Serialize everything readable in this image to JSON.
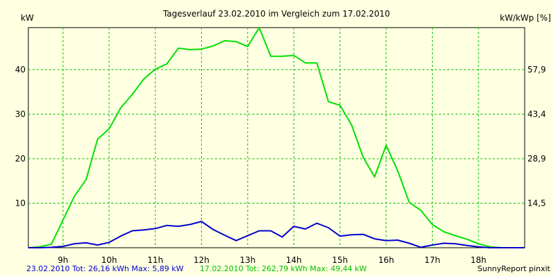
{
  "chart_data": {
    "type": "line",
    "title": "Tagesverlauf 23.02.2010 im Vergleich zum 17.02.2010",
    "ylabel_left": "kW",
    "ylabel_right": "kW/kWp [%]",
    "x_ticks": [
      "9h",
      "10h",
      "11h",
      "12h",
      "13h",
      "14h",
      "15h",
      "16h",
      "17h",
      "18h"
    ],
    "y_ticks_left": [
      "10",
      "20",
      "30",
      "40"
    ],
    "y_ticks_right": [
      "14,5",
      "28,9",
      "43,4",
      "57,9"
    ],
    "ylim": [
      0,
      49.44
    ],
    "xlim": [
      8.25,
      19.0
    ],
    "grid": true,
    "series": [
      {
        "name": "17.02.2010",
        "color": "#00e000",
        "x": [
          8.25,
          8.5,
          8.75,
          9.0,
          9.25,
          9.5,
          9.75,
          10.0,
          10.25,
          10.5,
          10.75,
          11.0,
          11.25,
          11.5,
          11.75,
          12.0,
          12.25,
          12.5,
          12.75,
          13.0,
          13.25,
          13.5,
          13.75,
          14.0,
          14.25,
          14.5,
          14.75,
          15.0,
          15.25,
          15.5,
          15.75,
          16.0,
          16.25,
          16.5,
          16.75,
          17.0,
          17.25,
          17.5,
          17.75,
          18.0,
          18.25,
          18.5,
          18.75,
          19.0
        ],
        "values": [
          0.0,
          0.2,
          0.8,
          6.2,
          11.6,
          15.3,
          24.4,
          26.7,
          31.4,
          34.4,
          37.9,
          40.1,
          41.3,
          44.8,
          44.5,
          44.6,
          45.3,
          46.5,
          46.3,
          45.2,
          49.44,
          43.0,
          43.0,
          43.2,
          41.5,
          41.5,
          32.8,
          32.0,
          27.6,
          20.4,
          15.9,
          23.0,
          17.3,
          10.2,
          8.4,
          5.2,
          3.6,
          2.7,
          1.9,
          0.9,
          0.2,
          0.0,
          0.0,
          0.0
        ]
      },
      {
        "name": "23.02.2010",
        "color": "#0000d0",
        "x": [
          8.25,
          8.5,
          8.75,
          9.0,
          9.25,
          9.5,
          9.75,
          10.0,
          10.25,
          10.5,
          10.75,
          11.0,
          11.25,
          11.5,
          11.75,
          12.0,
          12.25,
          12.5,
          12.75,
          13.0,
          13.25,
          13.5,
          13.75,
          14.0,
          14.25,
          14.5,
          14.75,
          15.0,
          15.25,
          15.5,
          15.75,
          16.0,
          16.25,
          16.5,
          16.75,
          17.0,
          17.25,
          17.5,
          17.75,
          18.0,
          18.25,
          18.5,
          18.75,
          19.0
        ],
        "values": [
          0.0,
          0.0,
          0.1,
          0.3,
          0.9,
          1.1,
          0.6,
          1.2,
          2.6,
          3.8,
          4.0,
          4.3,
          5.0,
          4.8,
          5.2,
          5.89,
          4.1,
          2.8,
          1.6,
          2.7,
          3.8,
          3.8,
          2.4,
          4.8,
          4.2,
          5.5,
          4.5,
          2.6,
          2.9,
          3.0,
          2.0,
          1.6,
          1.7,
          1.0,
          0.1,
          0.6,
          1.0,
          0.9,
          0.5,
          0.2,
          0.0,
          0.0,
          0.0,
          0.0
        ]
      }
    ],
    "footer": {
      "blue_text": "23.02.2010 Tot: 26,16 kWh Max: 5,89 kW",
      "green_text": "17.02.2010 Tot: 262,79 kWh Max: 49,44 kW",
      "credit": "SunnyReport pinxit"
    }
  }
}
